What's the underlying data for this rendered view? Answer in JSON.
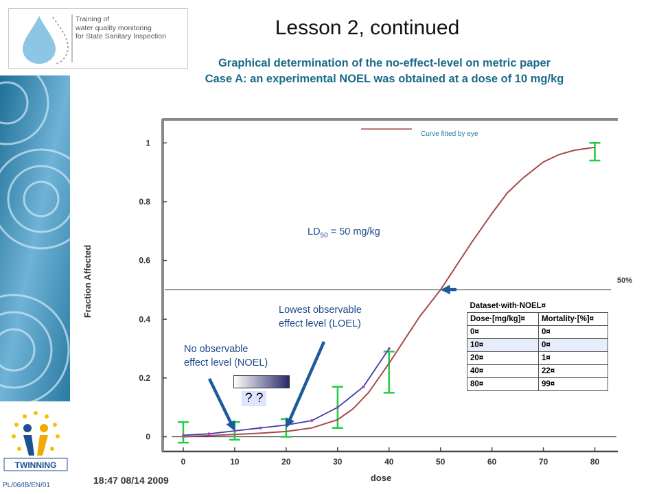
{
  "header": {
    "logo_text": "Training of\nwater quality monitoring\nfor State Sanitary Inspection",
    "title": "Lesson 2, continued",
    "subtitle1": "Graphical determination of the no-effect-level on metric paper",
    "subtitle2": "Case A: an experimental NOEL was obtained at a dose of 10 mg/kg"
  },
  "footer": {
    "code": "PL/06/IB/EN/01",
    "twinning": "TWINNING",
    "timestamp": "18:47 08/14 2009"
  },
  "annotations": {
    "ld50_prefix": "LD",
    "ld50_sub": "50",
    "ld50_suffix": " = 50 mg/kg",
    "loel": "Lowest observable\neffect level (LOEL)",
    "noel": "No observable\neffect level (NOEL)",
    "question_marks": "? ?",
    "fifty": "50%",
    "curve_legend": "Curve  fitted by eye"
  },
  "dataset": {
    "title": "Dataset·with·NOEL¤",
    "headers": [
      "Dose·[mg/kg]¤",
      "Mortality·[%]¤"
    ],
    "rows": [
      [
        "0¤",
        "0¤"
      ],
      [
        "10¤",
        "0¤"
      ],
      [
        "20¤",
        "1¤"
      ],
      [
        "40¤",
        "22¤"
      ],
      [
        "80¤",
        "99¤"
      ]
    ],
    "highlight_row": 1
  },
  "colors": {
    "fitted_curve": "#a34a4a",
    "data_line": "#3b3ba8",
    "error_bars": "#22cc44",
    "arrows": "#1c5a9c",
    "subtitle": "#1a6a8a"
  },
  "chart_data": {
    "type": "line",
    "xlabel": "dose",
    "ylabel": "Fraction Affected",
    "x_ticks": [
      0,
      10,
      20,
      30,
      40,
      50,
      60,
      70,
      80
    ],
    "y_ticks": [
      0,
      0.2,
      0.4,
      0.6,
      0.8,
      1
    ],
    "xlim": [
      -4,
      85
    ],
    "ylim": [
      -0.05,
      1.08
    ],
    "reference_line_y": 0.5,
    "series": [
      {
        "kind": "fitted_curve",
        "x": [
          0,
          5,
          10,
          15,
          20,
          25,
          30,
          33,
          36,
          40,
          43,
          46,
          50,
          53,
          56,
          60,
          63,
          66,
          70,
          73,
          76,
          80
        ],
        "y": [
          0,
          0.004,
          0.008,
          0.012,
          0.018,
          0.03,
          0.058,
          0.095,
          0.15,
          0.25,
          0.33,
          0.41,
          0.5,
          0.58,
          0.66,
          0.76,
          0.83,
          0.88,
          0.935,
          0.96,
          0.975,
          0.985
        ]
      },
      {
        "kind": "data",
        "x": [
          0,
          5,
          10,
          15,
          20,
          25,
          30,
          35,
          40
        ],
        "y": [
          0.005,
          0.01,
          0.02,
          0.03,
          0.04,
          0.055,
          0.1,
          0.17,
          0.3
        ]
      }
    ],
    "error_bars": [
      {
        "x": 0,
        "y": 0.005,
        "lo": -0.02,
        "hi": 0.05
      },
      {
        "x": 10,
        "y": 0.02,
        "lo": -0.01,
        "hi": 0.05
      },
      {
        "x": 20,
        "y": 0.03,
        "lo": 0,
        "hi": 0.06
      },
      {
        "x": 30,
        "y": 0.1,
        "lo": 0.03,
        "hi": 0.17
      },
      {
        "x": 40,
        "y": 0.22,
        "lo": 0.15,
        "hi": 0.29
      },
      {
        "x": 80,
        "y": 0.985,
        "lo": 0.94,
        "hi": 1
      }
    ],
    "ld50": {
      "x": 50,
      "y": 0.5
    },
    "arrow_targets": [
      {
        "name": "ld50",
        "x": 50,
        "y": 0.5
      },
      {
        "name": "loel",
        "x": 20,
        "y": 0.03
      },
      {
        "name": "noel",
        "x": 10,
        "y": 0.02
      }
    ]
  }
}
